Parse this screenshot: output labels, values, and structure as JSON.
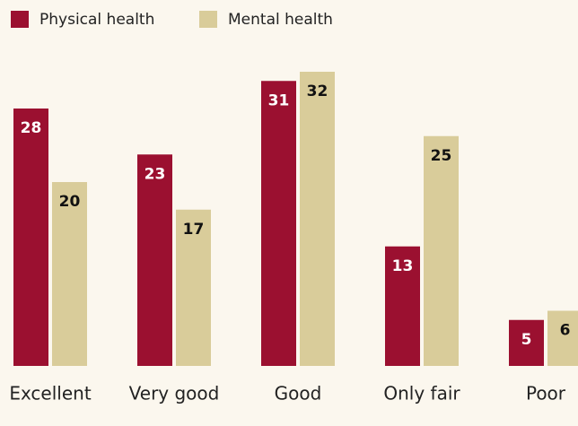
{
  "chart_data": {
    "type": "bar",
    "categories": [
      "Excellent",
      "Very good",
      "Good",
      "Only fair",
      "Poor"
    ],
    "series": [
      {
        "name": "Physical health",
        "color": "#9b1030",
        "values": [
          28,
          23,
          31,
          13,
          5
        ]
      },
      {
        "name": "Mental health",
        "color": "#d9cc9a",
        "values": [
          20,
          17,
          32,
          25,
          6
        ]
      }
    ],
    "legend": "top-left"
  }
}
